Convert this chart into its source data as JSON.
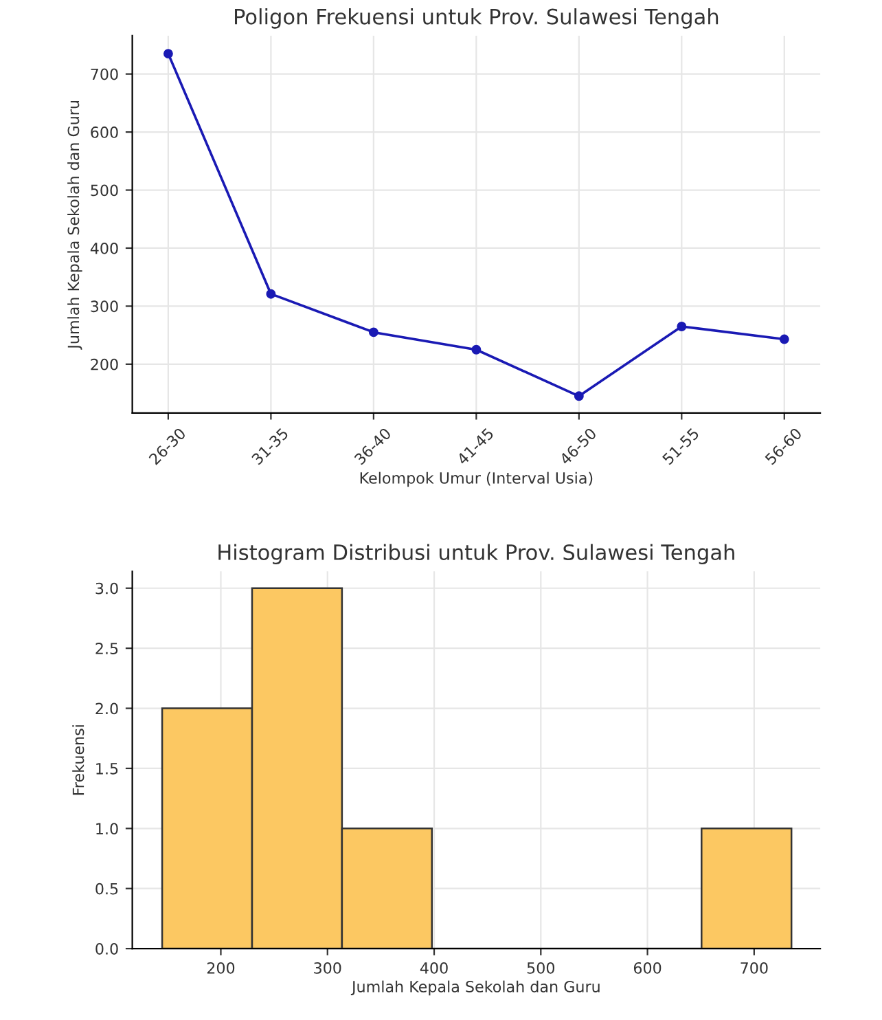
{
  "chart_data": [
    {
      "type": "line",
      "title": "Poligon Frekuensi untuk Prov. Sulawesi Tengah",
      "xlabel": "Kelompok Umur (Interval Usia)",
      "ylabel": "Jumlah Kepala Sekolah dan Guru",
      "categories": [
        "26-30",
        "31-35",
        "36-40",
        "41-45",
        "46-50",
        "51-55",
        "56-60"
      ],
      "series": [
        {
          "color": "#1a1ab4",
          "values": [
            735,
            321,
            255,
            225,
            145,
            265,
            243
          ]
        }
      ],
      "ylim": [
        116,
        766
      ],
      "yticks": [
        200,
        300,
        400,
        500,
        600,
        700
      ],
      "grid": true,
      "marker": "circle",
      "line_style": "solid"
    },
    {
      "type": "histogram",
      "title": "Histogram Distribusi untuk Prov. Sulawesi Tengah",
      "xlabel": "Jumlah Kepala Sekolah dan Guru",
      "ylabel": "Frekuensi",
      "bins": [
        145,
        229.3,
        313.6,
        397.9,
        482.1,
        566.4,
        650.7,
        735
      ],
      "values": [
        2,
        3,
        1,
        0,
        0,
        0,
        1
      ],
      "color": "#fcc862",
      "xlim": [
        117,
        762
      ],
      "xticks": [
        200,
        300,
        400,
        500,
        600,
        700
      ],
      "ylim": [
        0,
        3.14
      ],
      "yticks": [
        {
          "value": 0,
          "label": "0.0"
        },
        {
          "value": 0.5,
          "label": "0.5"
        },
        {
          "value": 1,
          "label": "1.0"
        },
        {
          "value": 1.5,
          "label": "1.5"
        },
        {
          "value": 2,
          "label": "2.0"
        },
        {
          "value": 2.5,
          "label": "2.5"
        },
        {
          "value": 3,
          "label": "3.0"
        }
      ],
      "grid": true
    }
  ]
}
